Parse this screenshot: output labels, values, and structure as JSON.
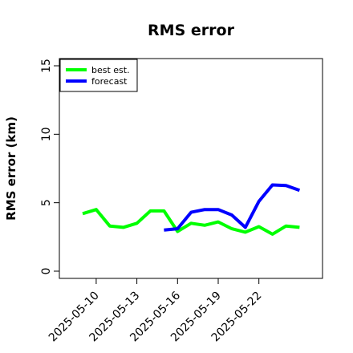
{
  "chart_data": {
    "type": "line",
    "title": "RMS error",
    "xlabel": "",
    "ylabel": "RMS error (km)",
    "ylim": [
      0,
      15
    ],
    "yticks": [
      "0",
      "5",
      "10",
      "15"
    ],
    "xticks": [
      "2025-05-10",
      "2025-05-13",
      "2025-05-16",
      "2025-05-19",
      "2025-05-22"
    ],
    "x": [
      "2025-05-09",
      "2025-05-10",
      "2025-05-11",
      "2025-05-12",
      "2025-05-13",
      "2025-05-14",
      "2025-05-15",
      "2025-05-16",
      "2025-05-17",
      "2025-05-18",
      "2025-05-19",
      "2025-05-20",
      "2025-05-21",
      "2025-05-22",
      "2025-05-23",
      "2025-05-24",
      "2025-05-25"
    ],
    "grid": false,
    "legend_position": "top-left",
    "series": [
      {
        "name": "best est.",
        "color": "#00ff00",
        "values": [
          4.2,
          4.5,
          3.3,
          3.2,
          3.5,
          4.4,
          4.4,
          2.9,
          3.5,
          3.35,
          3.6,
          3.1,
          2.85,
          3.25,
          2.7,
          3.3,
          3.2
        ]
      },
      {
        "name": "forecast",
        "color": "#0000ff",
        "values": [
          null,
          null,
          null,
          null,
          null,
          null,
          3.0,
          3.1,
          4.3,
          4.5,
          4.5,
          4.1,
          3.2,
          5.1,
          6.3,
          6.25,
          5.9
        ]
      }
    ]
  }
}
